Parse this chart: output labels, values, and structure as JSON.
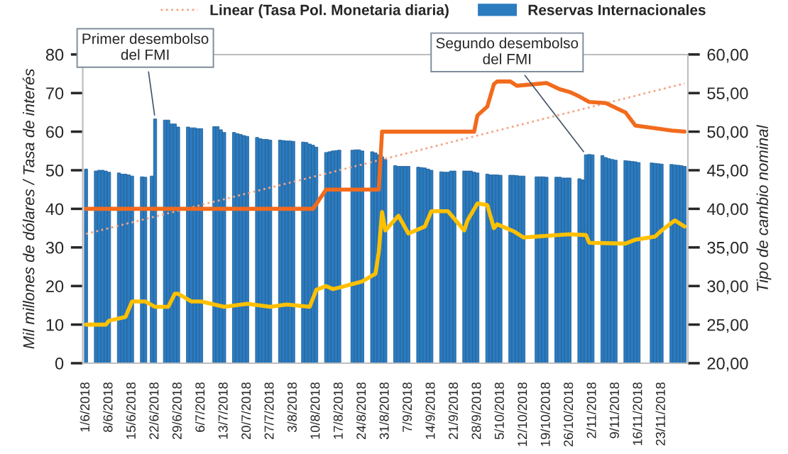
{
  "chart_data": {
    "type": "bar",
    "ylabel": "Mil millones de dólares / Tasa de interés",
    "y2label": "Tipo de cambio nominal",
    "legend": "top",
    "grid": false,
    "xlim": [
      "2018-05-31",
      "2018-12-01"
    ],
    "xticks": [
      {
        "value": "2018-06-01",
        "label": "1/6/2018"
      },
      {
        "value": "2018-06-08",
        "label": "8/6/2018"
      },
      {
        "value": "2018-06-15",
        "label": "15/6/2018"
      },
      {
        "value": "2018-06-22",
        "label": "22/6/2018"
      },
      {
        "value": "2018-06-29",
        "label": "29/6/2018"
      },
      {
        "value": "2018-07-06",
        "label": "6/7/2018"
      },
      {
        "value": "2018-07-13",
        "label": "13/7/2018"
      },
      {
        "value": "2018-07-20",
        "label": "20/7/2018"
      },
      {
        "value": "2018-07-27",
        "label": "27/7/2018"
      },
      {
        "value": "2018-08-03",
        "label": "3/8/2018"
      },
      {
        "value": "2018-08-10",
        "label": "10/8/2018"
      },
      {
        "value": "2018-08-17",
        "label": "17/8/2018"
      },
      {
        "value": "2018-08-24",
        "label": "24/8/2018"
      },
      {
        "value": "2018-08-31",
        "label": "31/8/2018"
      },
      {
        "value": "2018-09-07",
        "label": "7/9/2018"
      },
      {
        "value": "2018-09-14",
        "label": "14/9/2018"
      },
      {
        "value": "2018-09-21",
        "label": "21/9/2018"
      },
      {
        "value": "2018-09-28",
        "label": "28/9/2018"
      },
      {
        "value": "2018-10-05",
        "label": "5/10/2018"
      },
      {
        "value": "2018-10-12",
        "label": "12/10/2018"
      },
      {
        "value": "2018-10-19",
        "label": "19/10/2018"
      },
      {
        "value": "2018-10-26",
        "label": "26/10/2018"
      },
      {
        "value": "2018-11-02",
        "label": "2/11/2018"
      },
      {
        "value": "2018-11-09",
        "label": "9/11/2018"
      },
      {
        "value": "2018-11-16",
        "label": "16/11/2018"
      },
      {
        "value": "2018-11-23",
        "label": "23/11/2018"
      }
    ],
    "ylim": [
      0,
      80
    ],
    "yticks": [
      0,
      10,
      20,
      30,
      40,
      50,
      60,
      70,
      80
    ],
    "y2lim": [
      20,
      60
    ],
    "y2ticks": [
      {
        "value": 20,
        "label": "20,00"
      },
      {
        "value": 25,
        "label": "25,00"
      },
      {
        "value": 30,
        "label": "30,00"
      },
      {
        "value": 35,
        "label": "35,00"
      },
      {
        "value": 40,
        "label": "40,00"
      },
      {
        "value": 45,
        "label": "45,00"
      },
      {
        "value": 50,
        "label": "50,00"
      },
      {
        "value": 55,
        "label": "55,00"
      },
      {
        "value": 60,
        "label": "60,00"
      }
    ],
    "series": [
      {
        "name": "Linear (Tasa Pol. Monetaria diaria)",
        "type": "line",
        "color": "#f4a582",
        "line_style": "dotted",
        "x": [
          "2018-06-01",
          "2018-11-30"
        ],
        "values": [
          33.5,
          72.5
        ]
      },
      {
        "name": "Reservas Internacionales",
        "color": "#2b7bbf",
        "x": [
          "2018-06-01",
          "2018-06-04",
          "2018-06-05",
          "2018-06-06",
          "2018-06-07",
          "2018-06-08",
          "2018-06-11",
          "2018-06-12",
          "2018-06-13",
          "2018-06-14",
          "2018-06-15",
          "2018-06-18",
          "2018-06-19",
          "2018-06-21",
          "2018-06-22",
          "2018-06-25",
          "2018-06-26",
          "2018-06-27",
          "2018-06-28",
          "2018-06-29",
          "2018-07-02",
          "2018-07-03",
          "2018-07-04",
          "2018-07-05",
          "2018-07-06",
          "2018-07-10",
          "2018-07-11",
          "2018-07-12",
          "2018-07-13",
          "2018-07-16",
          "2018-07-17",
          "2018-07-18",
          "2018-07-19",
          "2018-07-20",
          "2018-07-23",
          "2018-07-24",
          "2018-07-25",
          "2018-07-26",
          "2018-07-27",
          "2018-07-30",
          "2018-07-31",
          "2018-08-01",
          "2018-08-02",
          "2018-08-03",
          "2018-08-06",
          "2018-08-07",
          "2018-08-08",
          "2018-08-09",
          "2018-08-10",
          "2018-08-13",
          "2018-08-14",
          "2018-08-15",
          "2018-08-16",
          "2018-08-17",
          "2018-08-21",
          "2018-08-22",
          "2018-08-23",
          "2018-08-24",
          "2018-08-27",
          "2018-08-28",
          "2018-08-29",
          "2018-08-30",
          "2018-08-31",
          "2018-09-03",
          "2018-09-04",
          "2018-09-05",
          "2018-09-06",
          "2018-09-07",
          "2018-09-10",
          "2018-09-11",
          "2018-09-12",
          "2018-09-13",
          "2018-09-14",
          "2018-09-17",
          "2018-09-18",
          "2018-09-19",
          "2018-09-20",
          "2018-09-21",
          "2018-09-24",
          "2018-09-25",
          "2018-09-26",
          "2018-09-27",
          "2018-09-28",
          "2018-10-01",
          "2018-10-02",
          "2018-10-03",
          "2018-10-04",
          "2018-10-05",
          "2018-10-08",
          "2018-10-09",
          "2018-10-10",
          "2018-10-11",
          "2018-10-12",
          "2018-10-16",
          "2018-10-17",
          "2018-10-18",
          "2018-10-19",
          "2018-10-22",
          "2018-10-23",
          "2018-10-24",
          "2018-10-25",
          "2018-10-26",
          "2018-10-29",
          "2018-10-30",
          "2018-10-31",
          "2018-11-01",
          "2018-11-02",
          "2018-11-05",
          "2018-11-06",
          "2018-11-07",
          "2018-11-08",
          "2018-11-09",
          "2018-11-12",
          "2018-11-13",
          "2018-11-14",
          "2018-11-15",
          "2018-11-16",
          "2018-11-20",
          "2018-11-21",
          "2018-11-22",
          "2018-11-23",
          "2018-11-26",
          "2018-11-27",
          "2018-11-28",
          "2018-11-29",
          "2018-11-30"
        ],
        "values": [
          50.3,
          49.8,
          50.0,
          50.0,
          49.8,
          49.5,
          49.3,
          49.0,
          49.0,
          48.8,
          48.5,
          48.3,
          48.2,
          48.5,
          63.3,
          63.0,
          63.0,
          62.0,
          62.0,
          61.2,
          61.2,
          61.0,
          61.0,
          60.8,
          60.8,
          61.3,
          61.3,
          60.5,
          59.8,
          59.8,
          59.5,
          59.3,
          59.0,
          58.8,
          58.5,
          58.2,
          58.0,
          58.0,
          57.8,
          57.8,
          57.7,
          57.6,
          57.6,
          57.5,
          57.3,
          57.2,
          56.8,
          56.5,
          56.0,
          54.6,
          54.8,
          55.0,
          55.1,
          55.2,
          55.2,
          55.3,
          55.3,
          55.0,
          54.8,
          54.5,
          54.0,
          53.5,
          52.8,
          51.2,
          51.0,
          51.0,
          51.0,
          51.0,
          50.8,
          50.7,
          50.6,
          50.3,
          50.0,
          49.6,
          49.5,
          49.5,
          49.8,
          49.8,
          49.8,
          49.8,
          49.8,
          49.5,
          49.3,
          49.0,
          48.8,
          48.8,
          48.8,
          48.7,
          48.7,
          48.7,
          48.6,
          48.5,
          48.5,
          48.3,
          48.3,
          48.3,
          48.2,
          48.2,
          48.2,
          48.0,
          48.0,
          48.0,
          47.8,
          47.5,
          54.0,
          54.1,
          54.0,
          53.8,
          53.3,
          53.0,
          52.8,
          52.6,
          52.5,
          52.4,
          52.3,
          52.2,
          52.0,
          51.9,
          51.8,
          51.7,
          51.6,
          51.5,
          51.4,
          51.3,
          51.2,
          51.0
        ]
      },
      {
        "type": "line",
        "color": "#f26b1d",
        "x": [
          "2018-06-01",
          "2018-08-09",
          "2018-08-13",
          "2018-08-29",
          "2018-08-30",
          "2018-09-27",
          "2018-09-28",
          "2018-10-01",
          "2018-10-03",
          "2018-10-04",
          "2018-10-08",
          "2018-10-10",
          "2018-10-19",
          "2018-10-23",
          "2018-10-26",
          "2018-10-29",
          "2018-11-01",
          "2018-11-06",
          "2018-11-12",
          "2018-11-15",
          "2018-11-21",
          "2018-11-26",
          "2018-11-30"
        ],
        "values": [
          40,
          40,
          45,
          45,
          60,
          60,
          64.2,
          66.5,
          72.3,
          73.0,
          73.0,
          71.9,
          72.6,
          71.0,
          70.3,
          69.1,
          67.7,
          67.4,
          65.0,
          61.6,
          60.9,
          60.3,
          60.0
        ]
      },
      {
        "type": "line",
        "axis": "y2",
        "color": "#ffc000",
        "x": [
          "2018-06-01",
          "2018-06-07",
          "2018-06-08",
          "2018-06-13",
          "2018-06-15",
          "2018-06-19",
          "2018-06-22",
          "2018-06-26",
          "2018-06-28",
          "2018-06-29",
          "2018-07-03",
          "2018-07-06",
          "2018-07-13",
          "2018-07-20",
          "2018-07-27",
          "2018-08-01",
          "2018-08-08",
          "2018-08-10",
          "2018-08-13",
          "2018-08-15",
          "2018-08-17",
          "2018-08-24",
          "2018-08-28",
          "2018-08-29",
          "2018-08-30",
          "2018-08-31",
          "2018-09-04",
          "2018-09-07",
          "2018-09-12",
          "2018-09-14",
          "2018-09-19",
          "2018-09-24",
          "2018-09-25",
          "2018-09-28",
          "2018-10-01",
          "2018-10-03",
          "2018-10-04",
          "2018-10-09",
          "2018-10-12",
          "2018-10-26",
          "2018-10-31",
          "2018-11-01",
          "2018-11-12",
          "2018-11-15",
          "2018-11-21",
          "2018-11-23",
          "2018-11-27",
          "2018-11-30"
        ],
        "values": [
          25.0,
          25.0,
          25.5,
          26.0,
          28.0,
          28.0,
          27.3,
          27.3,
          29.0,
          29.0,
          28.0,
          28.0,
          27.3,
          27.7,
          27.3,
          27.6,
          27.3,
          29.5,
          30.0,
          29.6,
          29.8,
          30.6,
          31.6,
          34.4,
          39.6,
          37.2,
          39.1,
          36.8,
          37.7,
          39.7,
          39.7,
          37.2,
          38.5,
          40.7,
          40.5,
          37.5,
          38.0,
          37.1,
          36.3,
          36.7,
          36.6,
          35.6,
          35.5,
          36.0,
          36.4,
          37.2,
          38.5,
          37.7
        ]
      }
    ],
    "annotations": [
      {
        "text": "Primer desembolso\ndel FMI",
        "x": "2018-06-22",
        "y": 63.3
      },
      {
        "text": "Segundo desembolso\ndel FMI",
        "x": "2018-10-31",
        "y": 54.0
      }
    ]
  }
}
